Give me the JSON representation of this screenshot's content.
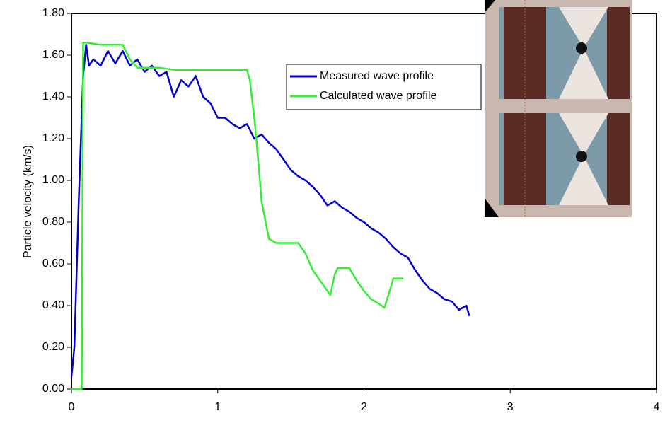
{
  "chart_data": {
    "type": "line",
    "y_label": "Particle velocity  (km/s)",
    "xlim": [
      0,
      4
    ],
    "xticks": [
      0,
      1,
      2,
      3,
      4
    ],
    "ylim": [
      0,
      1.8
    ],
    "yticks": [
      {
        "value": 0,
        "label": "0.00"
      },
      {
        "value": 0.2,
        "label": "0.20"
      },
      {
        "value": 0.4,
        "label": "0.40"
      },
      {
        "value": 0.6,
        "label": "0.60"
      },
      {
        "value": 0.8,
        "label": "0.80"
      },
      {
        "value": 1.0,
        "label": "1.00"
      },
      {
        "value": 1.2,
        "label": "1.20"
      },
      {
        "value": 1.4,
        "label": "1.40"
      },
      {
        "value": 1.6,
        "label": "1.60"
      },
      {
        "value": 1.8,
        "label": "1.80"
      }
    ],
    "series": [
      {
        "name": "Measured wave profile",
        "color": "#0000cc",
        "x": [
          0,
          0.02,
          0.05,
          0.08,
          0.1,
          0.12,
          0.15,
          0.2,
          0.25,
          0.3,
          0.35,
          0.4,
          0.45,
          0.5,
          0.55,
          0.6,
          0.65,
          0.7,
          0.75,
          0.8,
          0.85,
          0.9,
          0.95,
          1.0,
          1.05,
          1.1,
          1.15,
          1.2,
          1.25,
          1.3,
          1.35,
          1.4,
          1.45,
          1.5,
          1.55,
          1.6,
          1.65,
          1.7,
          1.75,
          1.8,
          1.85,
          1.9,
          1.95,
          2.0,
          2.05,
          2.1,
          2.15,
          2.2,
          2.25,
          2.3,
          2.35,
          2.4,
          2.45,
          2.5,
          2.55,
          2.6,
          2.65,
          2.7,
          2.72
        ],
        "values": [
          0.06,
          0.2,
          0.9,
          1.5,
          1.65,
          1.55,
          1.58,
          1.55,
          1.62,
          1.56,
          1.62,
          1.55,
          1.58,
          1.52,
          1.55,
          1.5,
          1.52,
          1.4,
          1.48,
          1.45,
          1.5,
          1.4,
          1.37,
          1.3,
          1.3,
          1.27,
          1.25,
          1.27,
          1.2,
          1.22,
          1.18,
          1.15,
          1.1,
          1.05,
          1.02,
          1.0,
          0.97,
          0.93,
          0.88,
          0.9,
          0.87,
          0.85,
          0.82,
          0.8,
          0.77,
          0.75,
          0.72,
          0.68,
          0.65,
          0.63,
          0.57,
          0.52,
          0.48,
          0.46,
          0.43,
          0.42,
          0.38,
          0.4,
          0.35
        ]
      },
      {
        "name": "Calculated wave profile",
        "color": "#33ee33",
        "x": [
          0,
          0.07,
          0.08,
          0.1,
          0.2,
          0.35,
          0.4,
          0.45,
          0.6,
          0.7,
          1.0,
          1.2,
          1.22,
          1.25,
          1.27,
          1.3,
          1.35,
          1.4,
          1.55,
          1.6,
          1.65,
          1.7,
          1.75,
          1.77,
          1.8,
          1.82,
          1.9,
          1.95,
          2.0,
          2.05,
          2.1,
          2.14,
          2.18,
          2.2,
          2.27
        ],
        "values": [
          0,
          0,
          1.66,
          1.66,
          1.65,
          1.65,
          1.58,
          1.54,
          1.54,
          1.53,
          1.53,
          1.53,
          1.48,
          1.3,
          1.15,
          0.9,
          0.72,
          0.7,
          0.7,
          0.65,
          0.57,
          0.52,
          0.47,
          0.45,
          0.55,
          0.58,
          0.58,
          0.52,
          0.47,
          0.43,
          0.41,
          0.39,
          0.48,
          0.53,
          0.53
        ]
      }
    ]
  }
}
